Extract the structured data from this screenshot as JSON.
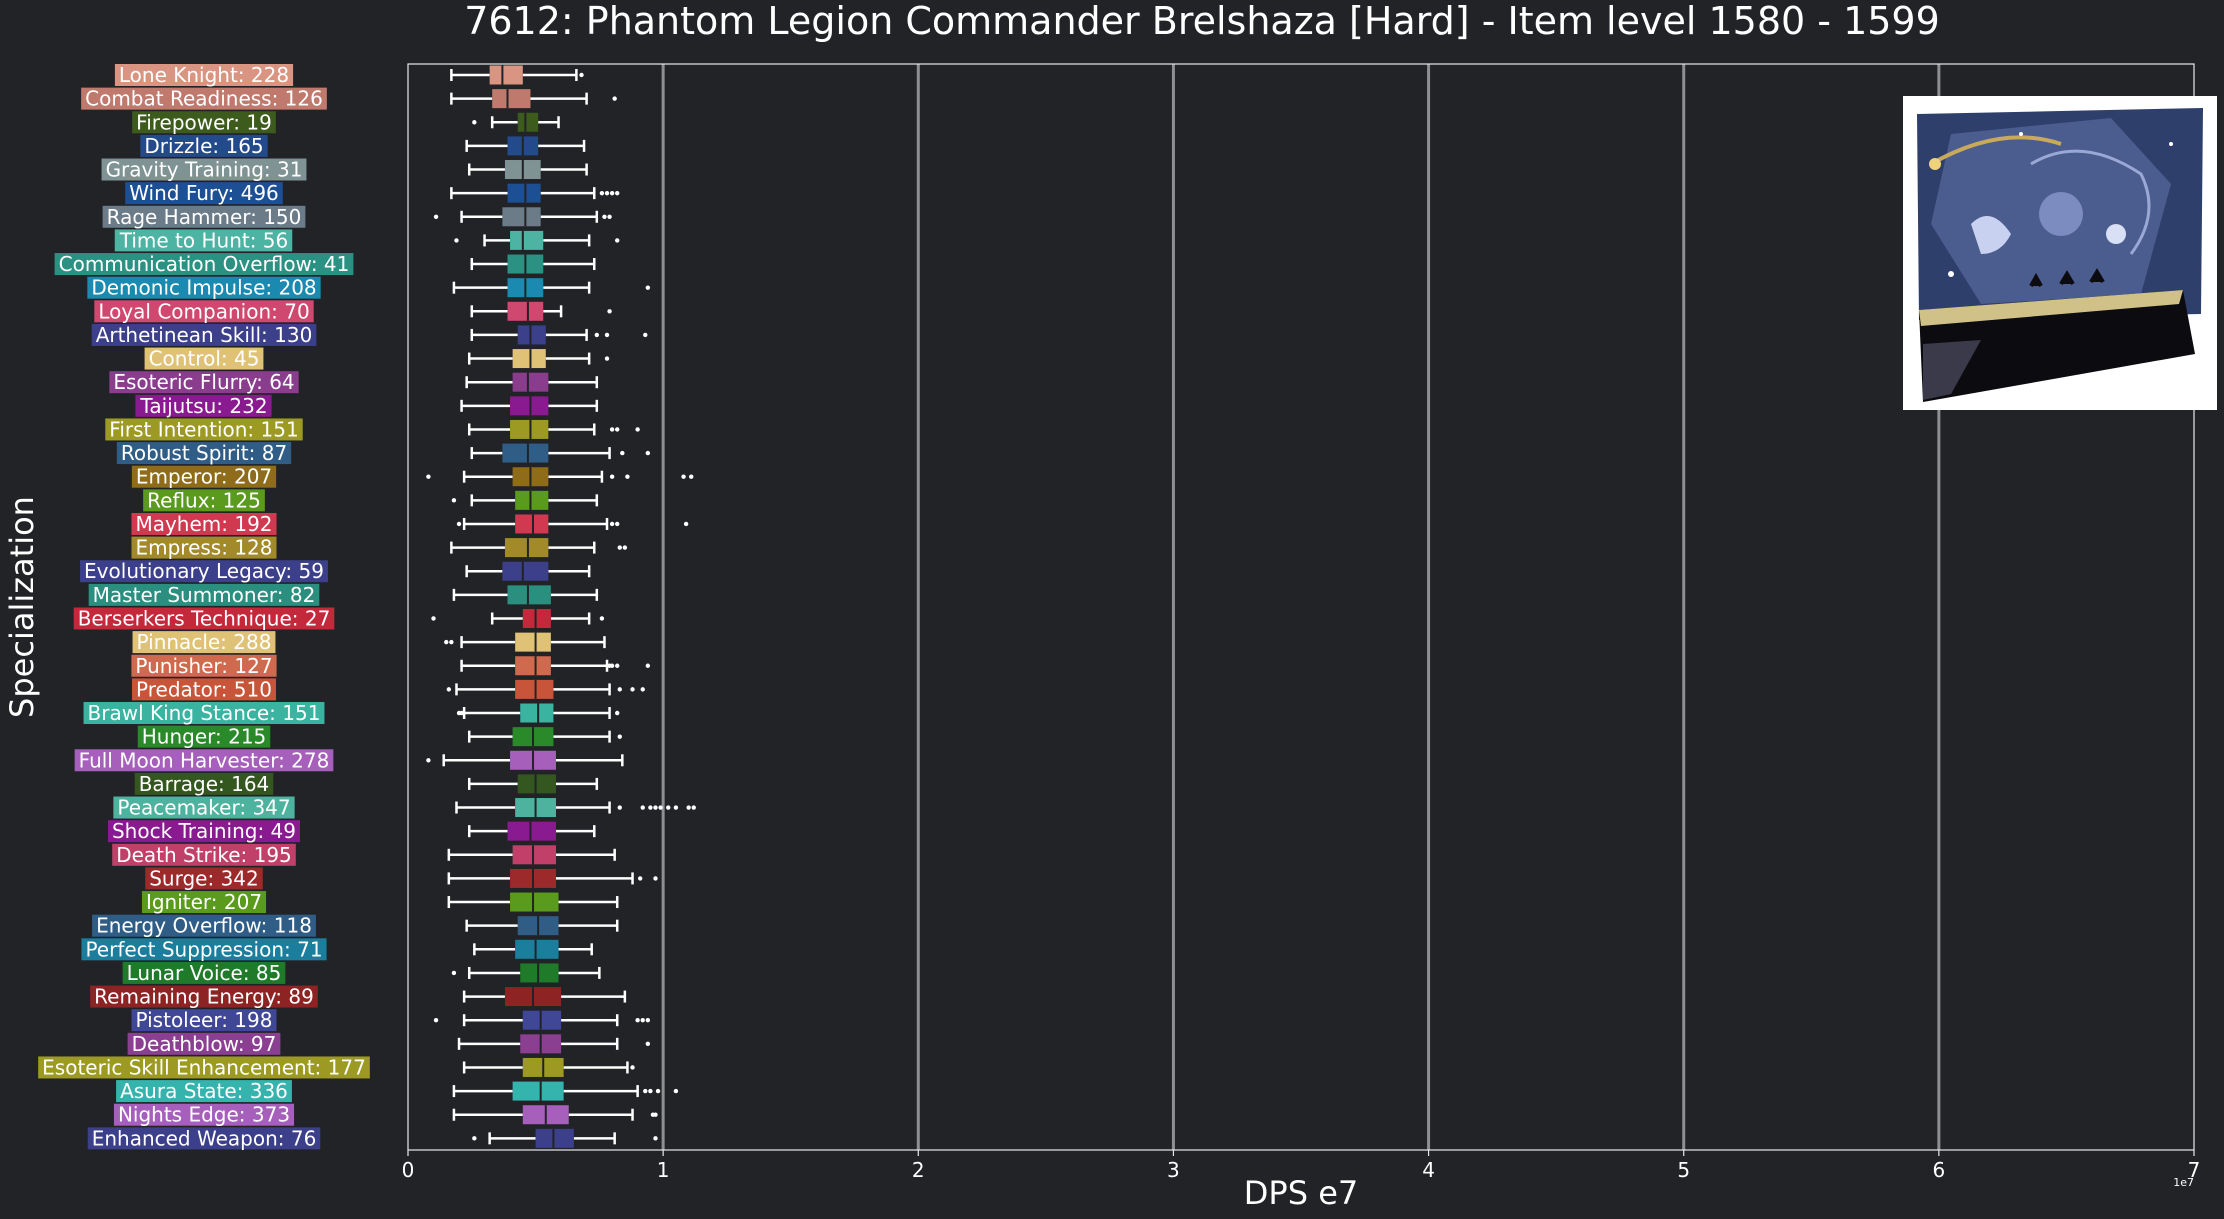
{
  "chart_data": {
    "type": "box",
    "title": "7612: Phantom Legion Commander Brelshaza [Hard] - Item level 1580 - 1599",
    "xlabel": "DPS e7",
    "ylabel": "Specialization",
    "x_exponent_label": "1e7",
    "xlim": [
      0,
      7
    ],
    "xticks": [
      0,
      1,
      2,
      3,
      4,
      5,
      6,
      7
    ],
    "xtick_labels": [
      "0",
      "1",
      "2",
      "3",
      "4",
      "5",
      "6",
      "7"
    ],
    "grid": "vertical",
    "series": [
      {
        "label": "Lone Knight: 228",
        "color": "#d99581",
        "whislo": 0.17,
        "q1": 0.32,
        "median": 0.37,
        "q3": 0.45,
        "whishi": 0.66,
        "fliers": [
          0.68
        ]
      },
      {
        "label": "Combat Readiness: 126",
        "color": "#c0796d",
        "whislo": 0.17,
        "q1": 0.33,
        "median": 0.39,
        "q3": 0.48,
        "whishi": 0.7,
        "fliers": [
          0.81
        ]
      },
      {
        "label": "Firepower: 19",
        "color": "#3c5b1c",
        "whislo": 0.33,
        "q1": 0.43,
        "median": 0.46,
        "q3": 0.51,
        "whishi": 0.59,
        "fliers": [
          0.26
        ]
      },
      {
        "label": "Drizzle: 165",
        "color": "#234a8a",
        "whislo": 0.23,
        "q1": 0.39,
        "median": 0.45,
        "q3": 0.51,
        "whishi": 0.69,
        "fliers": []
      },
      {
        "label": "Gravity Training: 31",
        "color": "#7f9294",
        "whislo": 0.24,
        "q1": 0.38,
        "median": 0.45,
        "q3": 0.52,
        "whishi": 0.7,
        "fliers": []
      },
      {
        "label": "Wind Fury: 496",
        "color": "#1d4f94",
        "whislo": 0.17,
        "q1": 0.39,
        "median": 0.46,
        "q3": 0.52,
        "whishi": 0.73,
        "fliers": [
          0.76,
          0.78,
          0.8,
          0.82
        ]
      },
      {
        "label": "Rage Hammer: 150",
        "color": "#6b7b88",
        "whislo": 0.21,
        "q1": 0.37,
        "median": 0.46,
        "q3": 0.52,
        "whishi": 0.74,
        "fliers": [
          0.11,
          0.77,
          0.79
        ]
      },
      {
        "label": "Time to Hunt: 56",
        "color": "#4db3a3",
        "whislo": 0.3,
        "q1": 0.4,
        "median": 0.45,
        "q3": 0.53,
        "whishi": 0.71,
        "fliers": [
          0.19,
          0.82
        ]
      },
      {
        "label": "Communication Overflow: 41",
        "color": "#2a9183",
        "whislo": 0.25,
        "q1": 0.39,
        "median": 0.46,
        "q3": 0.53,
        "whishi": 0.73,
        "fliers": []
      },
      {
        "label": "Demonic Impulse: 208",
        "color": "#1b8ab1",
        "whislo": 0.18,
        "q1": 0.39,
        "median": 0.46,
        "q3": 0.53,
        "whishi": 0.71,
        "fliers": [
          0.94
        ]
      },
      {
        "label": "Loyal Companion: 70",
        "color": "#d0476f",
        "whislo": 0.25,
        "q1": 0.39,
        "median": 0.47,
        "q3": 0.53,
        "whishi": 0.6,
        "fliers": [
          0.79
        ]
      },
      {
        "label": "Arthetinean Skill: 130",
        "color": "#3c3f8a",
        "whislo": 0.25,
        "q1": 0.43,
        "median": 0.48,
        "q3": 0.54,
        "whishi": 0.7,
        "fliers": [
          0.74,
          0.78,
          0.93
        ]
      },
      {
        "label": "Control: 45",
        "color": "#e0c277",
        "whislo": 0.24,
        "q1": 0.41,
        "median": 0.48,
        "q3": 0.54,
        "whishi": 0.71,
        "fliers": [
          0.78
        ]
      },
      {
        "label": "Esoteric Flurry: 64",
        "color": "#8a3c8d",
        "whislo": 0.23,
        "q1": 0.41,
        "median": 0.47,
        "q3": 0.55,
        "whishi": 0.74,
        "fliers": []
      },
      {
        "label": "Taijutsu: 232",
        "color": "#8a1a8f",
        "whislo": 0.21,
        "q1": 0.4,
        "median": 0.48,
        "q3": 0.55,
        "whishi": 0.74,
        "fliers": []
      },
      {
        "label": "First Intention: 151",
        "color": "#9c9a22",
        "whislo": 0.24,
        "q1": 0.4,
        "median": 0.48,
        "q3": 0.55,
        "whishi": 0.73,
        "fliers": [
          0.8,
          0.82,
          0.9
        ]
      },
      {
        "label": "Robust Spirit: 87",
        "color": "#2f5d86",
        "whislo": 0.25,
        "q1": 0.37,
        "median": 0.47,
        "q3": 0.55,
        "whishi": 0.79,
        "fliers": [
          0.84,
          0.94
        ]
      },
      {
        "label": "Emperor: 207",
        "color": "#8e6c1a",
        "whislo": 0.22,
        "q1": 0.41,
        "median": 0.48,
        "q3": 0.55,
        "whishi": 0.76,
        "fliers": [
          0.08,
          0.8,
          0.86,
          1.08,
          1.11
        ]
      },
      {
        "label": "Reflux: 125",
        "color": "#5a9a1c",
        "whislo": 0.25,
        "q1": 0.42,
        "median": 0.48,
        "q3": 0.55,
        "whishi": 0.74,
        "fliers": [
          0.18
        ]
      },
      {
        "label": "Mayhem: 192",
        "color": "#d0394f",
        "whislo": 0.22,
        "q1": 0.42,
        "median": 0.49,
        "q3": 0.55,
        "whishi": 0.78,
        "fliers": [
          0.2,
          0.8,
          0.82,
          1.09
        ]
      },
      {
        "label": "Empress: 128",
        "color": "#a28a2a",
        "whislo": 0.17,
        "q1": 0.38,
        "median": 0.47,
        "q3": 0.55,
        "whishi": 0.73,
        "fliers": [
          0.83,
          0.85
        ]
      },
      {
        "label": "Evolutionary Legacy: 59",
        "color": "#3c3f8a",
        "whislo": 0.23,
        "q1": 0.37,
        "median": 0.45,
        "q3": 0.55,
        "whishi": 0.71,
        "fliers": []
      },
      {
        "label": "Master Summoner: 82",
        "color": "#2a8f7f",
        "whislo": 0.18,
        "q1": 0.39,
        "median": 0.47,
        "q3": 0.56,
        "whishi": 0.74,
        "fliers": []
      },
      {
        "label": "Berserkers Technique: 27",
        "color": "#c4283b",
        "whislo": 0.33,
        "q1": 0.45,
        "median": 0.5,
        "q3": 0.56,
        "whishi": 0.71,
        "fliers": [
          0.1,
          0.76
        ]
      },
      {
        "label": "Pinnacle: 288",
        "color": "#e0c277",
        "whislo": 0.21,
        "q1": 0.42,
        "median": 0.5,
        "q3": 0.56,
        "whishi": 0.77,
        "fliers": [
          0.15,
          0.17
        ]
      },
      {
        "label": "Punisher: 127",
        "color": "#cf6a4e",
        "whislo": 0.21,
        "q1": 0.42,
        "median": 0.5,
        "q3": 0.56,
        "whishi": 0.78,
        "fliers": [
          0.79,
          0.8,
          0.82,
          0.94
        ]
      },
      {
        "label": "Predator: 510",
        "color": "#c8553a",
        "whislo": 0.19,
        "q1": 0.42,
        "median": 0.5,
        "q3": 0.57,
        "whishi": 0.79,
        "fliers": [
          0.16,
          0.83,
          0.88,
          0.92
        ]
      },
      {
        "label": "Brawl King Stance: 151",
        "color": "#3ab3a0",
        "whislo": 0.22,
        "q1": 0.44,
        "median": 0.51,
        "q3": 0.57,
        "whishi": 0.79,
        "fliers": [
          0.2,
          0.21,
          0.82
        ]
      },
      {
        "label": "Hunger: 215",
        "color": "#2a8a2a",
        "whislo": 0.24,
        "q1": 0.41,
        "median": 0.49,
        "q3": 0.57,
        "whishi": 0.79,
        "fliers": [
          0.83
        ]
      },
      {
        "label": "Full Moon Harvester: 278",
        "color": "#a65fba",
        "whislo": 0.14,
        "q1": 0.4,
        "median": 0.49,
        "q3": 0.58,
        "whishi": 0.84,
        "fliers": [
          0.08
        ]
      },
      {
        "label": "Barrage: 164",
        "color": "#34561f",
        "whislo": 0.24,
        "q1": 0.43,
        "median": 0.5,
        "q3": 0.58,
        "whishi": 0.74,
        "fliers": []
      },
      {
        "label": "Peacemaker: 347",
        "color": "#4db39f",
        "whislo": 0.19,
        "q1": 0.42,
        "median": 0.5,
        "q3": 0.58,
        "whishi": 0.79,
        "fliers": [
          0.83,
          0.92,
          0.95,
          0.97,
          0.99,
          1.02,
          1.05,
          1.1,
          1.12
        ]
      },
      {
        "label": "Shock Training: 49",
        "color": "#8a1a8f",
        "whislo": 0.24,
        "q1": 0.39,
        "median": 0.48,
        "q3": 0.58,
        "whishi": 0.73,
        "fliers": []
      },
      {
        "label": "Death Strike: 195",
        "color": "#c0406a",
        "whislo": 0.16,
        "q1": 0.41,
        "median": 0.49,
        "q3": 0.58,
        "whishi": 0.81,
        "fliers": []
      },
      {
        "label": "Surge: 342",
        "color": "#9c2a2a",
        "whislo": 0.16,
        "q1": 0.4,
        "median": 0.49,
        "q3": 0.58,
        "whishi": 0.88,
        "fliers": [
          0.91,
          0.97
        ]
      },
      {
        "label": "Igniter: 207",
        "color": "#5a9a1c",
        "whislo": 0.16,
        "q1": 0.4,
        "median": 0.49,
        "q3": 0.59,
        "whishi": 0.82,
        "fliers": []
      },
      {
        "label": "Energy Overflow: 118",
        "color": "#2f5d86",
        "whislo": 0.23,
        "q1": 0.43,
        "median": 0.51,
        "q3": 0.59,
        "whishi": 0.82,
        "fliers": []
      },
      {
        "label": "Perfect Suppression: 71",
        "color": "#1b7e9c",
        "whislo": 0.26,
        "q1": 0.42,
        "median": 0.5,
        "q3": 0.59,
        "whishi": 0.72,
        "fliers": []
      },
      {
        "label": "Lunar Voice: 85",
        "color": "#1f7a2a",
        "whislo": 0.24,
        "q1": 0.44,
        "median": 0.51,
        "q3": 0.59,
        "whishi": 0.75,
        "fliers": [
          0.18
        ]
      },
      {
        "label": "Remaining Energy: 89",
        "color": "#8e2323",
        "whislo": 0.22,
        "q1": 0.38,
        "median": 0.49,
        "q3": 0.6,
        "whishi": 0.85,
        "fliers": []
      },
      {
        "label": "Pistoleer: 198",
        "color": "#3f4796",
        "whislo": 0.22,
        "q1": 0.45,
        "median": 0.52,
        "q3": 0.6,
        "whishi": 0.82,
        "fliers": [
          0.11,
          0.9,
          0.92,
          0.94
        ]
      },
      {
        "label": "Deathblow: 97",
        "color": "#8a3f91",
        "whislo": 0.2,
        "q1": 0.44,
        "median": 0.52,
        "q3": 0.6,
        "whishi": 0.82,
        "fliers": [
          0.94
        ]
      },
      {
        "label": "Esoteric Skill Enhancement: 177",
        "color": "#9c9a22",
        "whislo": 0.22,
        "q1": 0.45,
        "median": 0.53,
        "q3": 0.61,
        "whishi": 0.86,
        "fliers": [
          0.88
        ]
      },
      {
        "label": "Asura State: 336",
        "color": "#35b3ad",
        "whislo": 0.18,
        "q1": 0.41,
        "median": 0.52,
        "q3": 0.61,
        "whishi": 0.9,
        "fliers": [
          0.93,
          0.95,
          0.98,
          1.05
        ]
      },
      {
        "label": "Nights Edge: 373",
        "color": "#a65fba",
        "whislo": 0.18,
        "q1": 0.45,
        "median": 0.54,
        "q3": 0.63,
        "whishi": 0.88,
        "fliers": [
          0.96,
          0.97
        ]
      },
      {
        "label": "Enhanced Weapon: 76",
        "color": "#3c3f8a",
        "whislo": 0.32,
        "q1": 0.5,
        "median": 0.57,
        "q3": 0.65,
        "whishi": 0.81,
        "fliers": [
          0.26,
          0.97
        ]
      }
    ]
  }
}
